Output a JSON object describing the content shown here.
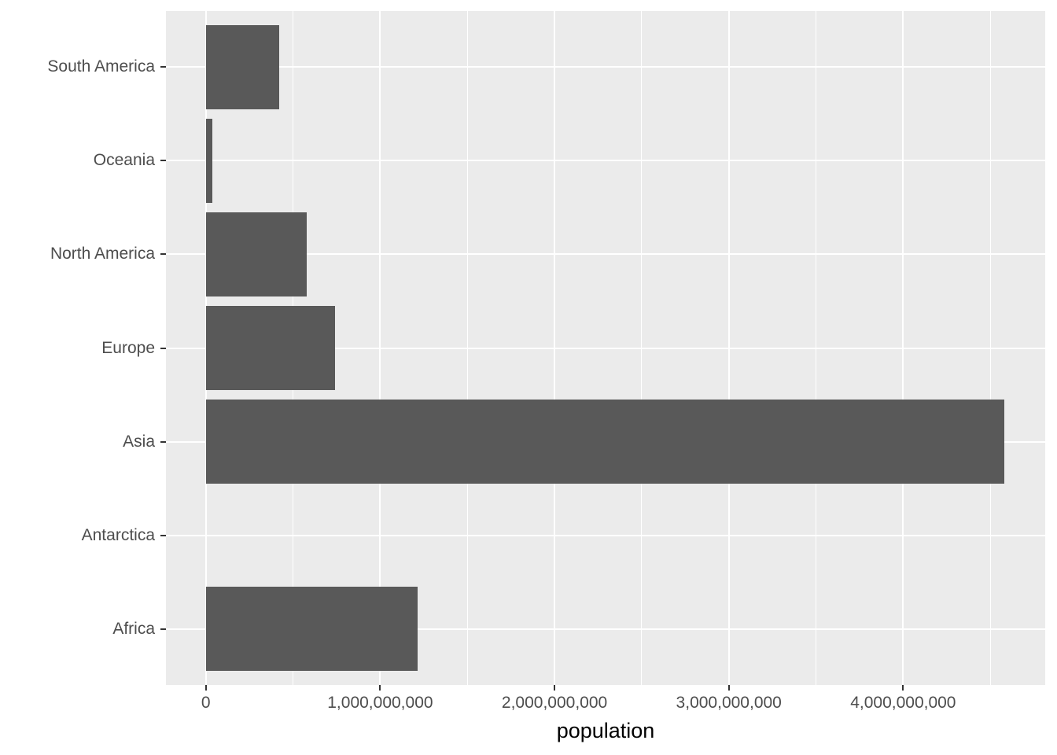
{
  "chart_data": {
    "type": "bar",
    "orientation": "horizontal",
    "title": "",
    "xlabel": "population",
    "ylabel": "",
    "categories": [
      "South America",
      "Oceania",
      "North America",
      "Europe",
      "Asia",
      "Antarctica",
      "Africa"
    ],
    "values": [
      422535000,
      38304000,
      579024000,
      738849000,
      4581757408,
      0,
      1216130000
    ],
    "x_ticks": [
      0,
      1000000000,
      2000000000,
      3000000000,
      4000000000
    ],
    "x_tick_labels": [
      "0",
      "1,000,000,000",
      "2,000,000,000",
      "3,000,000,000",
      "4,000,000,000"
    ],
    "x_minor_ticks": [
      500000000,
      1500000000,
      2500000000,
      3500000000,
      4500000000
    ],
    "xlim": [
      -229000000,
      4815000000
    ],
    "grid": true,
    "legend": "none",
    "colors": {
      "bar_fill": "#595959",
      "panel_background": "#EBEBEB",
      "grid_major": "#FFFFFF",
      "grid_minor": "#FFFFFF",
      "axis_text": "#4D4D4D",
      "axis_title": "#000000",
      "tick_marks": "#333333"
    }
  }
}
